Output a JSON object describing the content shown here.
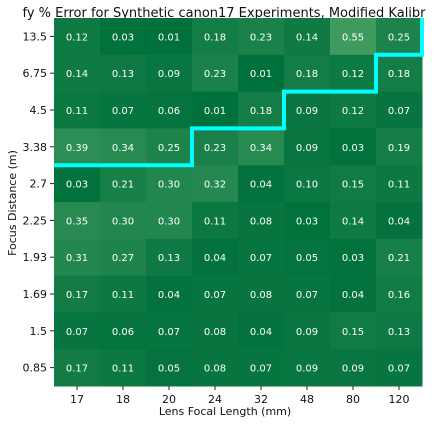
{
  "chart_data": {
    "type": "heatmap",
    "title": "fy % Error for Synthetic canon17 Experiments, Modified Kalibr",
    "xlabel": "Lens Focal Length (mm)",
    "ylabel": "Focus Distance (m)",
    "x_categories": [
      "17",
      "18",
      "20",
      "24",
      "32",
      "48",
      "80",
      "120"
    ],
    "y_categories": [
      "13.5",
      "6.75",
      "4.5",
      "3.38",
      "2.7",
      "2.25",
      "1.93",
      "1.69",
      "1.5",
      "0.85"
    ],
    "values": [
      [
        0.12,
        0.03,
        0.01,
        0.18,
        0.23,
        0.14,
        0.55,
        0.25
      ],
      [
        0.14,
        0.13,
        0.09,
        0.23,
        0.01,
        0.18,
        0.12,
        0.18
      ],
      [
        0.11,
        0.07,
        0.06,
        0.01,
        0.18,
        0.09,
        0.12,
        0.07
      ],
      [
        0.39,
        0.34,
        0.25,
        0.23,
        0.34,
        0.09,
        0.03,
        0.19
      ],
      [
        0.03,
        0.21,
        0.3,
        0.32,
        0.04,
        0.1,
        0.15,
        0.11
      ],
      [
        0.35,
        0.3,
        0.3,
        0.11,
        0.08,
        0.03,
        0.14,
        0.04
      ],
      [
        0.31,
        0.27,
        0.13,
        0.04,
        0.07,
        0.05,
        0.03,
        0.21
      ],
      [
        0.17,
        0.11,
        0.04,
        0.07,
        0.08,
        0.07,
        0.04,
        0.16
      ],
      [
        0.07,
        0.06,
        0.07,
        0.08,
        0.04,
        0.09,
        0.15,
        0.13
      ],
      [
        0.17,
        0.11,
        0.05,
        0.08,
        0.07,
        0.09,
        0.09,
        0.07
      ]
    ],
    "colormap": {
      "low": "#00703c",
      "high": "#3f9a5e"
    },
    "boundary_color": "#00ffff",
    "boundary_row_per_column": [
      4,
      4,
      4,
      3,
      3,
      2,
      2,
      1
    ]
  }
}
